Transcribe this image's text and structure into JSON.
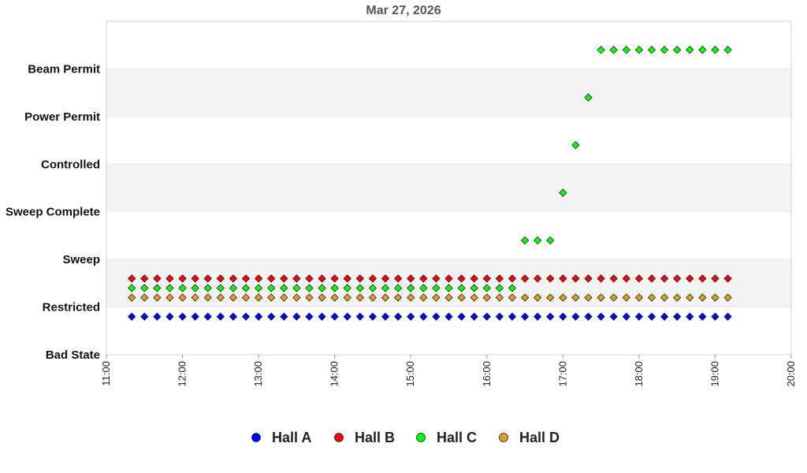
{
  "chart_data": {
    "type": "scatter",
    "title": "Mar 27, 2026",
    "xlabel": "",
    "ylabel": "",
    "x_ticks": [
      "11:00",
      "12:00",
      "13:00",
      "14:00",
      "15:00",
      "16:00",
      "17:00",
      "18:00",
      "19:00",
      "20:00"
    ],
    "xlim": [
      "11:00",
      "20:00"
    ],
    "y_categories": [
      "Bad State",
      "Restricted",
      "Sweep",
      "Sweep Complete",
      "Controlled",
      "Power Permit",
      "Beam Permit"
    ],
    "grid": "alternating horizontal bands",
    "legend": "bottom-center",
    "series": [
      {
        "name": "Hall A",
        "color": "#0000ff",
        "groups": [
          {
            "start": "11:20",
            "end": "19:10",
            "step_min": 10,
            "state": "Restricted",
            "offset": -0.2
          }
        ]
      },
      {
        "name": "Hall B",
        "color": "#ff0000",
        "groups": [
          {
            "start": "11:20",
            "end": "19:10",
            "step_min": 10,
            "state": "Restricted",
            "offset": 0.6
          }
        ]
      },
      {
        "name": "Hall C",
        "color": "#00ff00",
        "groups": [
          {
            "start": "11:20",
            "end": "16:20",
            "step_min": 10,
            "state": "Restricted",
            "offset": 0.4
          },
          {
            "start": "16:30",
            "end": "16:50",
            "step_min": 10,
            "state": "Sweep",
            "offset": 0.4
          },
          {
            "start": "17:00",
            "end": "17:00",
            "step_min": 10,
            "state": "Sweep Complete",
            "offset": 0.4
          },
          {
            "start": "17:10",
            "end": "17:10",
            "step_min": 10,
            "state": "Controlled",
            "offset": 0.4
          },
          {
            "start": "17:20",
            "end": "17:20",
            "step_min": 10,
            "state": "Power Permit",
            "offset": 0.4
          },
          {
            "start": "17:30",
            "end": "19:10",
            "step_min": 10,
            "state": "Beam Permit",
            "offset": 0.4
          }
        ]
      },
      {
        "name": "Hall D",
        "color": "#dd9f1f",
        "groups": [
          {
            "start": "11:20",
            "end": "19:10",
            "step_min": 10,
            "state": "Restricted",
            "offset": 0.2
          }
        ]
      }
    ]
  }
}
